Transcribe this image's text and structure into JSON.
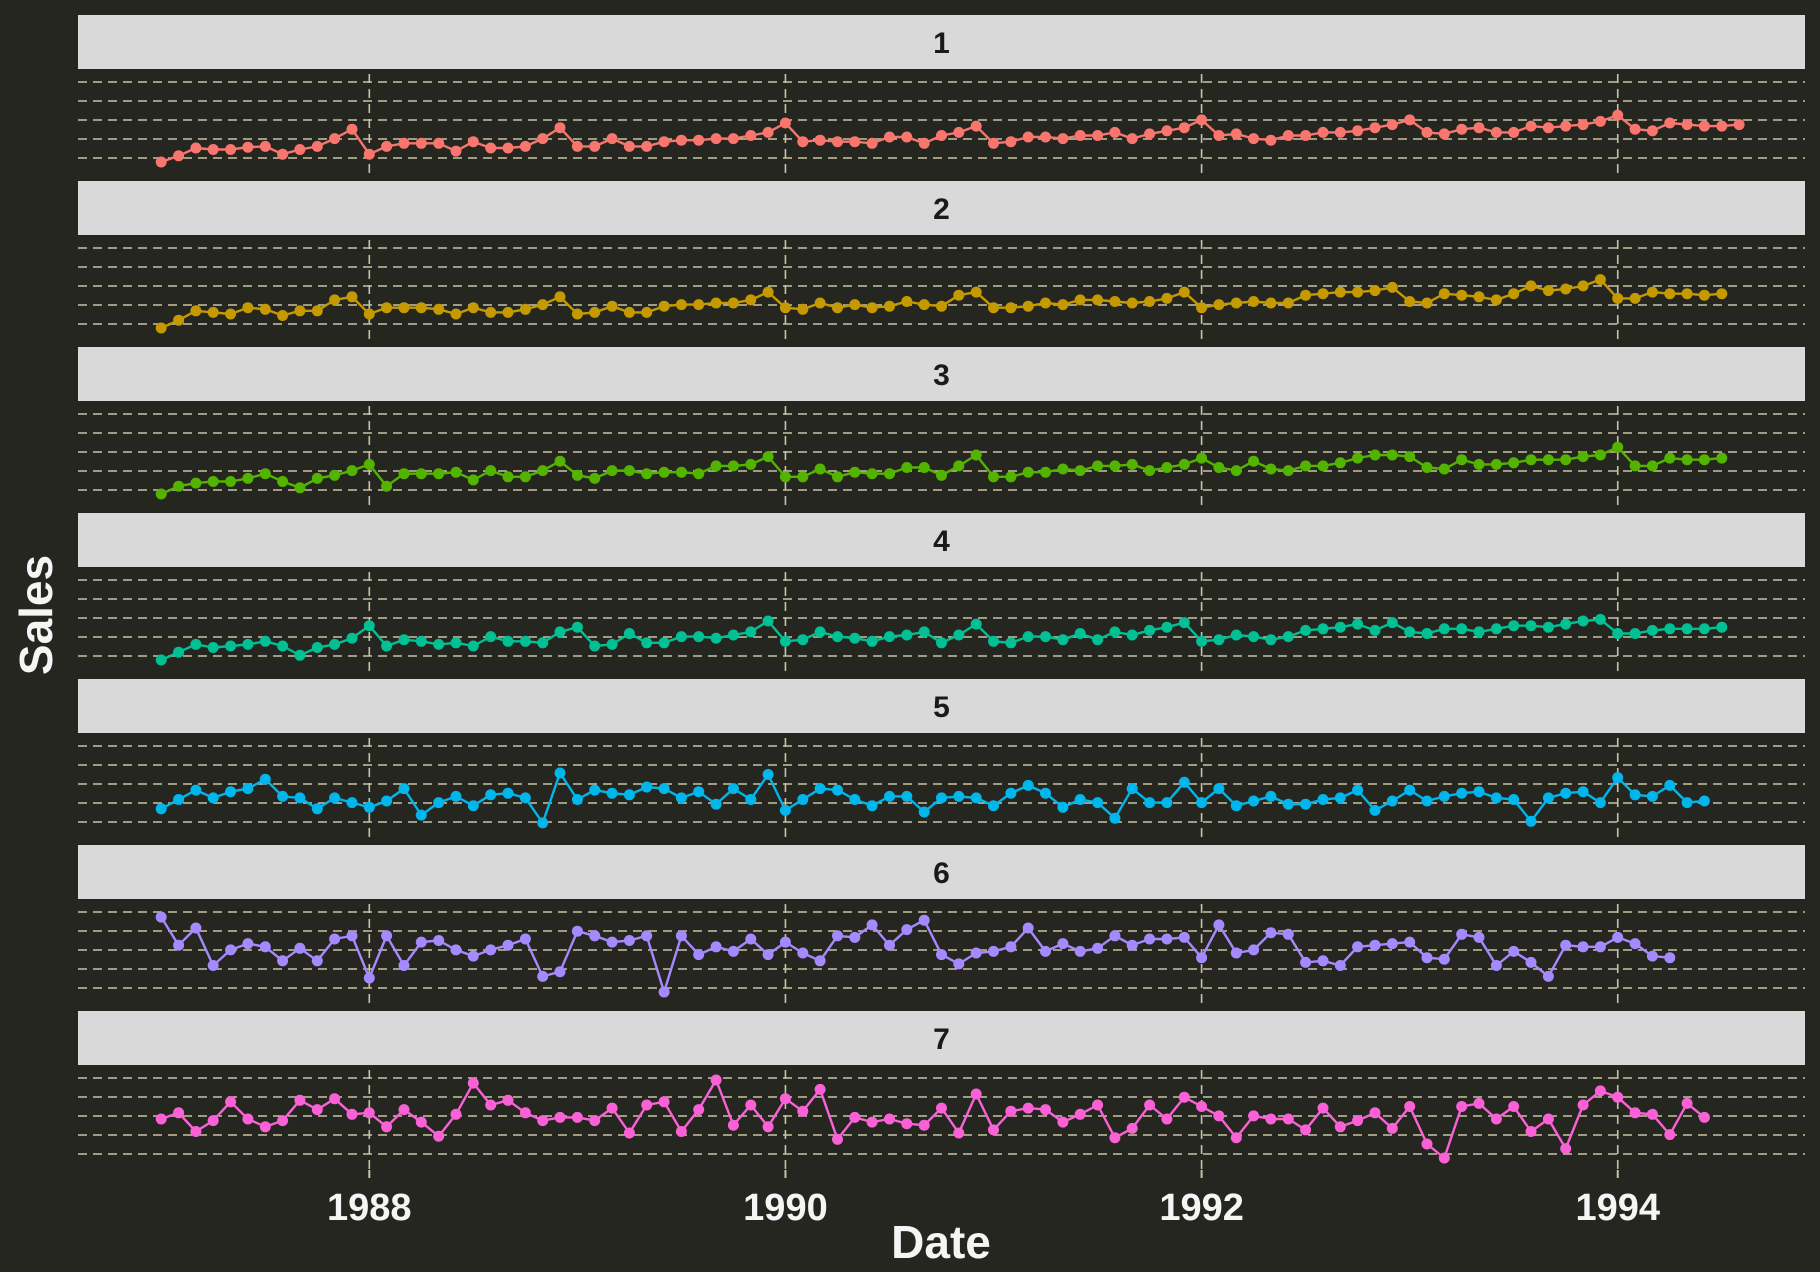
{
  "chart_data": {
    "type": "line",
    "title": "",
    "xlabel": "Date",
    "ylabel": "Sales",
    "facets": true,
    "grid": true,
    "legend": "none",
    "x_start": "1987-01",
    "x_frequency": "monthly",
    "xlim": [
      1986.6,
      1994.9
    ],
    "x_ticks": [
      1988,
      1990,
      1992,
      1994
    ],
    "x_tick_labels": [
      "1988",
      "1990",
      "1992",
      "1994"
    ],
    "series": [
      {
        "name": "1",
        "color": "#F8766D",
        "values": [
          0.0,
          0.08,
          0.18,
          0.16,
          0.16,
          0.19,
          0.2,
          0.1,
          0.16,
          0.2,
          0.3,
          0.42,
          0.1,
          0.2,
          0.24,
          0.24,
          0.24,
          0.14,
          0.26,
          0.18,
          0.18,
          0.2,
          0.3,
          0.44,
          0.2,
          0.2,
          0.3,
          0.2,
          0.2,
          0.26,
          0.28,
          0.28,
          0.3,
          0.3,
          0.34,
          0.38,
          0.5,
          0.26,
          0.28,
          0.26,
          0.26,
          0.24,
          0.32,
          0.32,
          0.24,
          0.34,
          0.38,
          0.46,
          0.24,
          0.26,
          0.32,
          0.32,
          0.3,
          0.34,
          0.34,
          0.38,
          0.3,
          0.36,
          0.4,
          0.44,
          0.54,
          0.34,
          0.36,
          0.3,
          0.28,
          0.34,
          0.34,
          0.38,
          0.38,
          0.4,
          0.44,
          0.48,
          0.54,
          0.38,
          0.36,
          0.42,
          0.44,
          0.38,
          0.38,
          0.46,
          0.44,
          0.46,
          0.48,
          0.52,
          0.6,
          0.42,
          0.4,
          0.5,
          0.48,
          0.46,
          0.46,
          0.48
        ]
      },
      {
        "name": "2",
        "color": "#C49A00",
        "values": [
          0.0,
          0.1,
          0.22,
          0.2,
          0.18,
          0.26,
          0.24,
          0.16,
          0.22,
          0.22,
          0.36,
          0.4,
          0.18,
          0.26,
          0.26,
          0.26,
          0.24,
          0.18,
          0.26,
          0.2,
          0.2,
          0.24,
          0.3,
          0.4,
          0.18,
          0.2,
          0.28,
          0.2,
          0.2,
          0.28,
          0.3,
          0.3,
          0.32,
          0.32,
          0.36,
          0.46,
          0.26,
          0.24,
          0.32,
          0.26,
          0.3,
          0.26,
          0.28,
          0.34,
          0.3,
          0.28,
          0.42,
          0.46,
          0.26,
          0.26,
          0.28,
          0.32,
          0.3,
          0.36,
          0.36,
          0.34,
          0.32,
          0.34,
          0.38,
          0.46,
          0.26,
          0.3,
          0.32,
          0.34,
          0.32,
          0.32,
          0.42,
          0.44,
          0.46,
          0.46,
          0.48,
          0.52,
          0.34,
          0.32,
          0.44,
          0.42,
          0.4,
          0.36,
          0.44,
          0.54,
          0.48,
          0.5,
          0.54,
          0.62,
          0.38,
          0.38,
          0.46,
          0.44,
          0.44,
          0.42,
          0.44
        ]
      },
      {
        "name": "3",
        "color": "#53B400",
        "values": [
          0.0,
          0.1,
          0.14,
          0.16,
          0.16,
          0.2,
          0.26,
          0.16,
          0.08,
          0.2,
          0.24,
          0.3,
          0.38,
          0.1,
          0.26,
          0.26,
          0.26,
          0.28,
          0.18,
          0.3,
          0.22,
          0.22,
          0.3,
          0.42,
          0.24,
          0.2,
          0.3,
          0.3,
          0.26,
          0.28,
          0.28,
          0.26,
          0.36,
          0.36,
          0.38,
          0.48,
          0.22,
          0.22,
          0.32,
          0.22,
          0.28,
          0.26,
          0.26,
          0.34,
          0.34,
          0.24,
          0.36,
          0.5,
          0.22,
          0.22,
          0.28,
          0.28,
          0.32,
          0.3,
          0.36,
          0.36,
          0.38,
          0.3,
          0.34,
          0.38,
          0.46,
          0.34,
          0.3,
          0.42,
          0.32,
          0.3,
          0.36,
          0.36,
          0.4,
          0.46,
          0.5,
          0.5,
          0.48,
          0.34,
          0.32,
          0.44,
          0.38,
          0.38,
          0.4,
          0.44,
          0.44,
          0.44,
          0.48,
          0.5,
          0.6,
          0.36,
          0.36,
          0.46,
          0.44,
          0.44,
          0.46
        ]
      },
      {
        "name": "4",
        "color": "#00C094",
        "values": [
          0.0,
          0.1,
          0.2,
          0.16,
          0.18,
          0.2,
          0.24,
          0.18,
          0.06,
          0.16,
          0.2,
          0.28,
          0.44,
          0.18,
          0.26,
          0.24,
          0.2,
          0.22,
          0.18,
          0.3,
          0.24,
          0.24,
          0.22,
          0.36,
          0.42,
          0.18,
          0.2,
          0.34,
          0.22,
          0.22,
          0.3,
          0.3,
          0.28,
          0.32,
          0.36,
          0.5,
          0.24,
          0.26,
          0.36,
          0.3,
          0.28,
          0.24,
          0.3,
          0.32,
          0.36,
          0.22,
          0.32,
          0.46,
          0.24,
          0.22,
          0.3,
          0.3,
          0.26,
          0.34,
          0.26,
          0.36,
          0.32,
          0.38,
          0.42,
          0.48,
          0.24,
          0.26,
          0.32,
          0.3,
          0.26,
          0.3,
          0.38,
          0.4,
          0.42,
          0.46,
          0.38,
          0.48,
          0.36,
          0.34,
          0.4,
          0.4,
          0.36,
          0.4,
          0.44,
          0.44,
          0.42,
          0.46,
          0.5,
          0.52,
          0.34,
          0.34,
          0.38,
          0.4,
          0.4,
          0.4,
          0.42
        ]
      },
      {
        "name": "5",
        "color": "#00B6EB",
        "values": [
          0.22,
          0.34,
          0.46,
          0.36,
          0.44,
          0.48,
          0.6,
          0.38,
          0.36,
          0.22,
          0.36,
          0.3,
          0.24,
          0.32,
          0.48,
          0.14,
          0.3,
          0.38,
          0.26,
          0.4,
          0.42,
          0.36,
          0.04,
          0.68,
          0.34,
          0.46,
          0.42,
          0.4,
          0.5,
          0.48,
          0.36,
          0.44,
          0.28,
          0.48,
          0.34,
          0.66,
          0.2,
          0.34,
          0.48,
          0.46,
          0.34,
          0.26,
          0.38,
          0.38,
          0.18,
          0.36,
          0.38,
          0.36,
          0.26,
          0.42,
          0.52,
          0.42,
          0.24,
          0.34,
          0.3,
          0.1,
          0.48,
          0.3,
          0.3,
          0.56,
          0.3,
          0.48,
          0.26,
          0.32,
          0.38,
          0.28,
          0.28,
          0.34,
          0.36,
          0.46,
          0.2,
          0.32,
          0.46,
          0.32,
          0.38,
          0.42,
          0.44,
          0.36,
          0.34,
          0.06,
          0.36,
          0.42,
          0.44,
          0.3,
          0.62,
          0.4,
          0.38,
          0.52,
          0.3,
          0.32
        ]
      },
      {
        "name": "6",
        "color": "#A58AFF",
        "values": [
          0.96,
          0.6,
          0.82,
          0.34,
          0.54,
          0.62,
          0.58,
          0.4,
          0.56,
          0.4,
          0.68,
          0.72,
          0.18,
          0.72,
          0.34,
          0.64,
          0.66,
          0.54,
          0.46,
          0.54,
          0.6,
          0.68,
          0.2,
          0.26,
          0.78,
          0.72,
          0.64,
          0.66,
          0.72,
          0.0,
          0.72,
          0.48,
          0.58,
          0.52,
          0.68,
          0.48,
          0.64,
          0.5,
          0.4,
          0.72,
          0.7,
          0.86,
          0.6,
          0.8,
          0.92,
          0.48,
          0.36,
          0.5,
          0.52,
          0.58,
          0.82,
          0.52,
          0.62,
          0.52,
          0.56,
          0.72,
          0.6,
          0.68,
          0.68,
          0.7,
          0.44,
          0.86,
          0.5,
          0.54,
          0.76,
          0.74,
          0.38,
          0.4,
          0.34,
          0.58,
          0.6,
          0.62,
          0.64,
          0.44,
          0.42,
          0.74,
          0.7,
          0.34,
          0.52,
          0.38,
          0.2,
          0.6,
          0.58,
          0.58,
          0.7,
          0.62,
          0.46,
          0.44
        ]
      },
      {
        "name": "7",
        "color": "#FB61D7",
        "values": [
          0.5,
          0.58,
          0.34,
          0.48,
          0.72,
          0.5,
          0.4,
          0.48,
          0.74,
          0.62,
          0.76,
          0.56,
          0.58,
          0.4,
          0.62,
          0.46,
          0.28,
          0.56,
          0.96,
          0.68,
          0.74,
          0.58,
          0.48,
          0.52,
          0.52,
          0.48,
          0.64,
          0.32,
          0.68,
          0.72,
          0.34,
          0.62,
          1.0,
          0.42,
          0.68,
          0.4,
          0.76,
          0.6,
          0.88,
          0.24,
          0.52,
          0.46,
          0.5,
          0.44,
          0.42,
          0.64,
          0.32,
          0.82,
          0.36,
          0.6,
          0.64,
          0.62,
          0.46,
          0.56,
          0.68,
          0.26,
          0.38,
          0.68,
          0.5,
          0.78,
          0.66,
          0.54,
          0.26,
          0.54,
          0.5,
          0.5,
          0.36,
          0.64,
          0.4,
          0.48,
          0.58,
          0.38,
          0.66,
          0.18,
          0.0,
          0.66,
          0.7,
          0.5,
          0.66,
          0.34,
          0.5,
          0.12,
          0.68,
          0.86,
          0.78,
          0.58,
          0.56,
          0.3,
          0.7,
          0.52
        ]
      }
    ]
  }
}
